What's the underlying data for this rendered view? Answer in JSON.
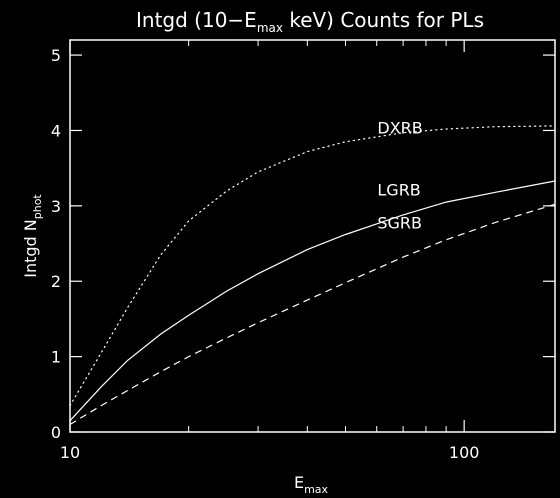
{
  "chart_data": {
    "type": "line",
    "title": {
      "prefix": "Intgd (10−E",
      "sub": "max",
      "suffix": " keV) Counts for PLs"
    },
    "xlabel": {
      "main": "E",
      "sub": "max"
    },
    "ylabel": {
      "main": "Intgd N",
      "sub": "phot"
    },
    "x_scale": "log",
    "xlim": [
      10,
      170
    ],
    "ylim": [
      0,
      5.2
    ],
    "x_major_ticks": [
      10,
      100
    ],
    "x_tick_labels": [
      "10",
      "100"
    ],
    "y_ticks": [
      0,
      1,
      2,
      3,
      4,
      5
    ],
    "y_tick_labels": [
      "0",
      "1",
      "2",
      "3",
      "4",
      "5"
    ],
    "grid": false,
    "legend": "none",
    "series": [
      {
        "name": "DXRB",
        "style": "dotted",
        "x": [
          10,
          12,
          14,
          17,
          20,
          25,
          30,
          40,
          50,
          70,
          90,
          120,
          170
        ],
        "y": [
          0.35,
          1.05,
          1.65,
          2.35,
          2.8,
          3.2,
          3.45,
          3.72,
          3.85,
          3.97,
          4.02,
          4.05,
          4.06
        ]
      },
      {
        "name": "LGRB",
        "style": "solid",
        "x": [
          10,
          12,
          14,
          17,
          20,
          25,
          30,
          40,
          50,
          70,
          90,
          120,
          170
        ],
        "y": [
          0.15,
          0.6,
          0.95,
          1.3,
          1.55,
          1.87,
          2.1,
          2.42,
          2.62,
          2.88,
          3.05,
          3.18,
          3.33
        ]
      },
      {
        "name": "SGRB",
        "style": "dashed",
        "x": [
          10,
          12,
          14,
          17,
          20,
          25,
          30,
          40,
          50,
          70,
          90,
          120,
          170
        ],
        "y": [
          0.1,
          0.35,
          0.55,
          0.8,
          1.0,
          1.25,
          1.45,
          1.75,
          1.98,
          2.32,
          2.55,
          2.78,
          3.02
        ]
      }
    ]
  }
}
